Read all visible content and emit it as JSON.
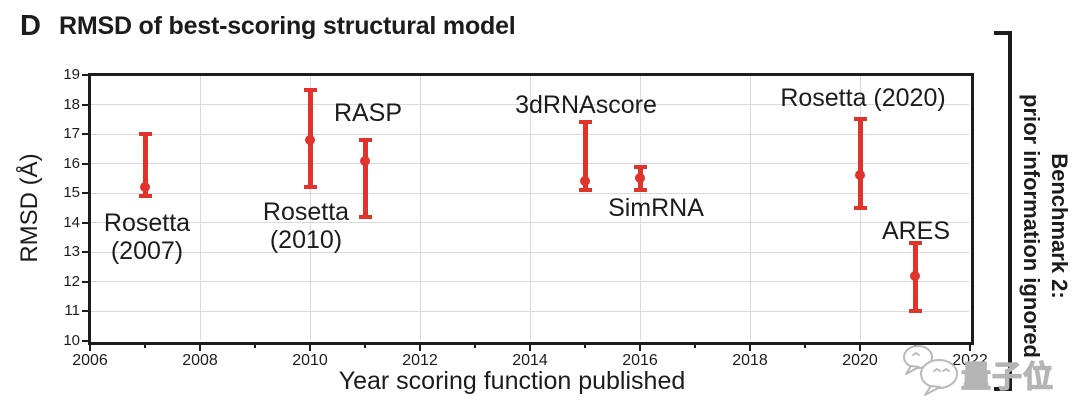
{
  "title": {
    "panel": "D",
    "text": "RMSD of best-scoring structural model"
  },
  "chart_data": {
    "type": "scatter",
    "title": "RMSD of best-scoring structural model",
    "xlabel": "Year scoring function published",
    "ylabel": "RMSD (Å)",
    "xlim": [
      2006,
      2022
    ],
    "ylim": [
      10,
      19
    ],
    "x_major_ticks": [
      2006,
      2008,
      2010,
      2012,
      2014,
      2016,
      2018,
      2020,
      2022
    ],
    "x_minor_ticks": [
      2007,
      2009,
      2011,
      2013,
      2015,
      2017,
      2019,
      2021
    ],
    "y_ticks": [
      10,
      11,
      12,
      13,
      14,
      15,
      16,
      17,
      18,
      19
    ],
    "grid": true,
    "legend": "none",
    "error_bar_color": "#e0332c",
    "points": [
      {
        "name": "Rosetta (2007)",
        "label_lines": [
          "Rosetta",
          "(2007)"
        ],
        "year": 2007,
        "rmsd": 15.2,
        "err_low": 14.9,
        "err_high": 17.0
      },
      {
        "name": "Rosetta (2010)",
        "label_lines": [
          "Rosetta",
          "(2010)"
        ],
        "year": 2010,
        "rmsd": 16.8,
        "err_low": 15.2,
        "err_high": 18.5
      },
      {
        "name": "RASP",
        "label_lines": [
          "RASP"
        ],
        "year": 2011,
        "rmsd": 16.1,
        "err_low": 14.2,
        "err_high": 16.8
      },
      {
        "name": "3dRNAscore",
        "label_lines": [
          "3dRNAscore"
        ],
        "year": 2015,
        "rmsd": 15.4,
        "err_low": 15.1,
        "err_high": 17.4
      },
      {
        "name": "SimRNA",
        "label_lines": [
          "SimRNA"
        ],
        "year": 2016,
        "rmsd": 15.5,
        "err_low": 15.1,
        "err_high": 15.9
      },
      {
        "name": "Rosetta (2020)",
        "label_lines": [
          "Rosetta (2020)"
        ],
        "year": 2020,
        "rmsd": 15.6,
        "err_low": 14.5,
        "err_high": 17.5
      },
      {
        "name": "ARES",
        "label_lines": [
          "ARES"
        ],
        "year": 2021,
        "rmsd": 12.2,
        "err_low": 11.0,
        "err_high": 13.3
      }
    ]
  },
  "annotation": {
    "line1": "Benchmark 2:",
    "line2": "prior information ignored"
  },
  "watermark": {
    "text": "量子位",
    "icon": "chat-bubbles-icon"
  },
  "colors": {
    "accent_red": "#e0332c",
    "axis": "#1c1c1c",
    "grid": "#dadada",
    "watermark_gray": "#b4b4b4",
    "background": "#ffffff"
  }
}
